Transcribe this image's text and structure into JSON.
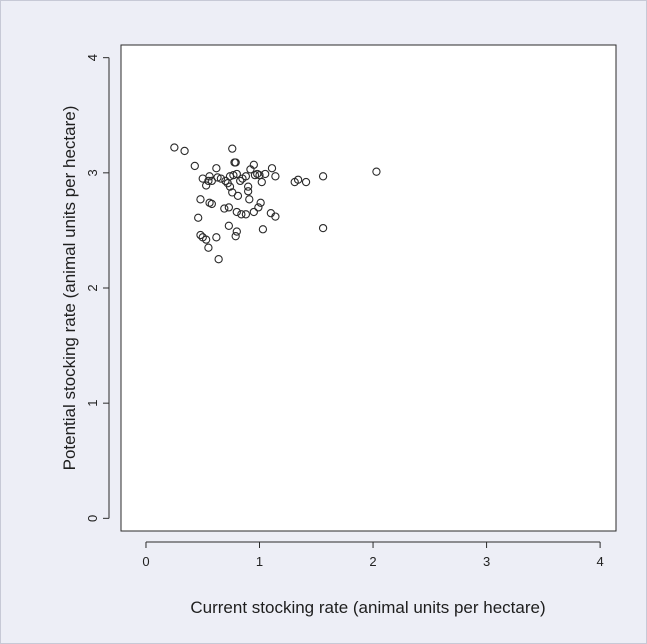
{
  "chart_data": {
    "type": "scatter",
    "xlabel": "Current stocking rate (animal units per hectare)",
    "ylabel": "Potential stocking rate (animal units per hectare)",
    "xlim": [
      -0.22,
      4.14
    ],
    "ylim": [
      -0.11,
      4.11
    ],
    "xticks": [
      0,
      1,
      2,
      3,
      4
    ],
    "yticks": [
      0,
      1,
      2,
      3,
      4
    ],
    "grid": false,
    "marker": "open-circle",
    "colors": {
      "background": "#edeef6",
      "plot_area": "#ffffff",
      "points": "#2a2a2a"
    },
    "points": [
      [
        0.25,
        3.22
      ],
      [
        0.34,
        3.19
      ],
      [
        0.43,
        3.06
      ],
      [
        0.5,
        2.95
      ],
      [
        0.53,
        2.89
      ],
      [
        0.55,
        2.93
      ],
      [
        0.56,
        2.97
      ],
      [
        0.58,
        2.93
      ],
      [
        0.62,
        3.04
      ],
      [
        0.63,
        2.96
      ],
      [
        0.66,
        2.95
      ],
      [
        0.7,
        2.93
      ],
      [
        0.72,
        2.91
      ],
      [
        0.74,
        2.88
      ],
      [
        0.74,
        2.97
      ],
      [
        0.76,
        3.21
      ],
      [
        0.77,
        2.98
      ],
      [
        0.78,
        3.09
      ],
      [
        0.79,
        3.09
      ],
      [
        0.8,
        2.99
      ],
      [
        0.81,
        2.8
      ],
      [
        0.83,
        2.93
      ],
      [
        0.85,
        2.95
      ],
      [
        0.88,
        2.97
      ],
      [
        0.9,
        2.84
      ],
      [
        0.9,
        2.88
      ],
      [
        0.92,
        3.03
      ],
      [
        0.95,
        3.07
      ],
      [
        0.96,
        2.98
      ],
      [
        0.98,
        2.99
      ],
      [
        1.0,
        2.98
      ],
      [
        1.02,
        2.92
      ],
      [
        1.05,
        2.99
      ],
      [
        1.11,
        3.04
      ],
      [
        1.14,
        2.97
      ],
      [
        1.31,
        2.92
      ],
      [
        1.34,
        2.94
      ],
      [
        1.41,
        2.92
      ],
      [
        1.56,
        2.97
      ],
      [
        2.03,
        3.01
      ],
      [
        0.46,
        2.61
      ],
      [
        0.48,
        2.77
      ],
      [
        0.56,
        2.74
      ],
      [
        0.58,
        2.73
      ],
      [
        0.69,
        2.69
      ],
      [
        0.73,
        2.7
      ],
      [
        0.76,
        2.83
      ],
      [
        0.8,
        2.66
      ],
      [
        0.84,
        2.64
      ],
      [
        0.88,
        2.64
      ],
      [
        0.91,
        2.77
      ],
      [
        0.95,
        2.66
      ],
      [
        0.99,
        2.7
      ],
      [
        1.01,
        2.74
      ],
      [
        1.1,
        2.65
      ],
      [
        1.14,
        2.62
      ],
      [
        0.48,
        2.46
      ],
      [
        0.5,
        2.44
      ],
      [
        0.53,
        2.42
      ],
      [
        0.55,
        2.35
      ],
      [
        0.62,
        2.44
      ],
      [
        0.64,
        2.25
      ],
      [
        0.73,
        2.54
      ],
      [
        0.79,
        2.45
      ],
      [
        0.8,
        2.49
      ],
      [
        1.03,
        2.51
      ],
      [
        1.56,
        2.52
      ]
    ]
  }
}
